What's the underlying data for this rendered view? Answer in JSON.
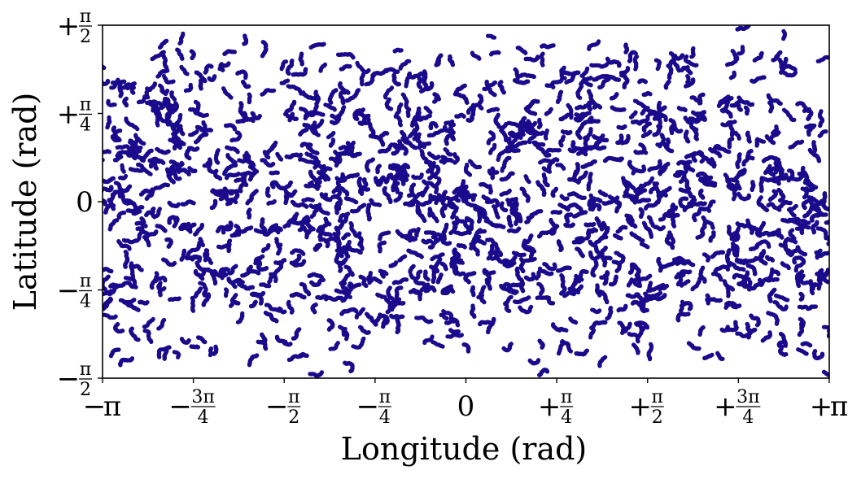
{
  "chart_data": {
    "type": "scatter",
    "title": "",
    "xlabel": "Longitude (rad)",
    "ylabel": "Latitude (rad)",
    "xlim": [
      -3.14159,
      3.14159
    ],
    "ylim": [
      -1.5708,
      1.5708
    ],
    "grid": false,
    "legend": null,
    "point_color": "#1a0a8c",
    "description_of_data": "Dense quasi-uniform distribution of several thousand points over the full longitude/latitude range, forming worm-like clustered patterns; points thin toward the poles with arc-shaped rows near latitude ±π/2.",
    "x_ticks": [
      {
        "value": -3.14159,
        "sign": "−",
        "whole": "π",
        "num": "",
        "den": ""
      },
      {
        "value": -2.35619,
        "sign": "−",
        "whole": "",
        "num": "3π",
        "den": "4"
      },
      {
        "value": -1.5708,
        "sign": "−",
        "whole": "",
        "num": "π",
        "den": "2"
      },
      {
        "value": -0.785398,
        "sign": "−",
        "whole": "",
        "num": "π",
        "den": "4"
      },
      {
        "value": 0,
        "sign": "",
        "whole": "0",
        "num": "",
        "den": ""
      },
      {
        "value": 0.785398,
        "sign": "+",
        "whole": "",
        "num": "π",
        "den": "4"
      },
      {
        "value": 1.5708,
        "sign": "+",
        "whole": "",
        "num": "π",
        "den": "2"
      },
      {
        "value": 2.35619,
        "sign": "+",
        "whole": "",
        "num": "3π",
        "den": "4"
      },
      {
        "value": 3.14159,
        "sign": "+",
        "whole": "π",
        "num": "",
        "den": ""
      }
    ],
    "y_ticks": [
      {
        "value": 1.5708,
        "sign": "+",
        "whole": "",
        "num": "π",
        "den": "2"
      },
      {
        "value": 0.785398,
        "sign": "+",
        "whole": "",
        "num": "π",
        "den": "4"
      },
      {
        "value": 0,
        "sign": "",
        "whole": "0",
        "num": "",
        "den": ""
      },
      {
        "value": -0.785398,
        "sign": "−",
        "whole": "",
        "num": "π",
        "den": "4"
      },
      {
        "value": -1.5708,
        "sign": "−",
        "whole": "",
        "num": "π",
        "den": "2"
      }
    ]
  }
}
